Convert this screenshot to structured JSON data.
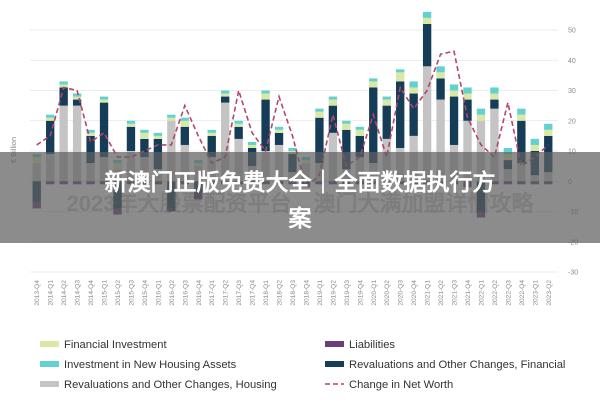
{
  "banner": {
    "line1": "新澳门正版免费大全｜全面数据执行方",
    "line2": "案"
  },
  "watermark": {
    "text": "2023年大股票配资平台…澳门大满加盟详情攻略"
  },
  "colors": {
    "financial_investment": "#d9e8a7",
    "liabilities": "#6a3c78",
    "investment_housing": "#63d1cf",
    "revaluations_financial": "#153d57",
    "revaluations_housing": "#c4c4c4",
    "net_worth": "#b5456b",
    "grid": "#dcdcdc"
  },
  "chart_data": {
    "type": "bar",
    "ylabel": "€ Billion",
    "ylim": [
      -30,
      50
    ],
    "yticks": [
      50,
      40,
      30,
      20,
      10,
      0,
      -10,
      -20,
      -30
    ],
    "grid": true,
    "legend_position": "bottom",
    "categories": [
      "2013-Q4",
      "2014-Q1",
      "2014-Q2",
      "2014-Q3",
      "2014-Q4",
      "2015-Q1",
      "2015-Q2",
      "2015-Q3",
      "2015-Q4",
      "2016-Q1",
      "2016-Q2",
      "2016-Q3",
      "2016-Q4",
      "2017-Q1",
      "2017-Q2",
      "2017-Q3",
      "2017-Q4",
      "2018-Q1",
      "2018-Q2",
      "2018-Q3",
      "2018-Q4",
      "2019-Q1",
      "2019-Q2",
      "2019-Q3",
      "2019-Q4",
      "2020-Q1",
      "2020-Q2",
      "2020-Q3",
      "2020-Q4",
      "2021-Q1",
      "2021-Q2",
      "2021-Q3",
      "2021-Q4",
      "2022-Q1",
      "2022-Q2",
      "2022-Q3",
      "2022-Q4",
      "2023-Q1",
      "2023-Q2"
    ],
    "series": [
      {
        "name": "Revaluations and Other Changes, Housing",
        "color_key": "revaluations_housing",
        "values": [
          6,
          9,
          25,
          25,
          6,
          8,
          4,
          10,
          8,
          4,
          20,
          12,
          5,
          8,
          26,
          14,
          5,
          10,
          12,
          3,
          6,
          6,
          16,
          4,
          8,
          6,
          14,
          11,
          15,
          38,
          27,
          12,
          20,
          20,
          24,
          4,
          6,
          2,
          3
        ]
      },
      {
        "name": "Revaluations and Other Changes, Financial",
        "color_key": "revaluations_financial",
        "values": [
          -7,
          11,
          6,
          2,
          9,
          18,
          -9,
          8,
          6,
          10,
          -9,
          6,
          -4,
          7,
          2,
          4,
          6,
          17,
          4,
          6,
          -1,
          15,
          9,
          13,
          7,
          25,
          11,
          22,
          14,
          14,
          7,
          16,
          7,
          -10,
          3,
          3,
          14,
          8,
          12
        ]
      },
      {
        "name": "Financial Investment",
        "color_key": "financial_investment",
        "values": [
          2,
          1,
          1,
          1,
          1,
          1,
          2,
          1,
          2,
          1,
          1,
          2,
          1,
          1,
          1,
          1,
          1,
          2,
          1,
          1,
          1,
          2,
          2,
          2,
          2,
          2,
          2,
          3,
          2,
          2,
          2,
          2,
          2,
          2,
          2,
          2,
          2,
          2,
          2
        ]
      },
      {
        "name": "Investment in New Housing Assets",
        "color_key": "investment_housing",
        "values": [
          1,
          1,
          1,
          1,
          1,
          1,
          1,
          1,
          1,
          1,
          1,
          1,
          1,
          1,
          1,
          1,
          1,
          1,
          1,
          1,
          1,
          1,
          1,
          1,
          1,
          1,
          1,
          1,
          2,
          2,
          2,
          2,
          2,
          2,
          2,
          2,
          2,
          2,
          2
        ]
      },
      {
        "name": "Liabilities",
        "color_key": "liabilities",
        "values": [
          -2,
          -1,
          -1,
          -1,
          -1,
          -1,
          -2,
          -1,
          -1,
          -1,
          -1,
          -1,
          -2,
          -1,
          -1,
          -1,
          -1,
          -1,
          -1,
          -1,
          -1,
          -1,
          -1,
          -1,
          -1,
          -1,
          -1,
          -1,
          -1,
          -1,
          -1,
          -1,
          -2,
          -2,
          -1,
          -1,
          -1,
          -1,
          -1
        ]
      }
    ],
    "net_worth": {
      "name": "Change in Net Worth",
      "color_key": "net_worth",
      "values": [
        12,
        15,
        31,
        30,
        13,
        16,
        8,
        8,
        10,
        12,
        12,
        25,
        15,
        6,
        8,
        30,
        16,
        10,
        28,
        15,
        -2,
        2,
        22,
        5,
        8,
        22,
        8,
        31,
        24,
        30,
        42,
        43,
        21,
        12,
        8,
        26,
        5,
        8,
        12
      ]
    }
  },
  "legend": {
    "items": [
      {
        "label": "Financial Investment",
        "kind": "bar",
        "color_key": "financial_investment"
      },
      {
        "label": "Liabilities",
        "kind": "bar",
        "color_key": "liabilities"
      },
      {
        "label": "Investment in New Housing Assets",
        "kind": "bar",
        "color_key": "investment_housing"
      },
      {
        "label": "Revaluations and Other Changes, Financial",
        "kind": "bar",
        "color_key": "revaluations_financial"
      },
      {
        "label": "Revaluations and Other Changes, Housing",
        "kind": "bar",
        "color_key": "revaluations_housing"
      },
      {
        "label": "Change in Net Worth",
        "kind": "dash",
        "color_key": "net_worth"
      }
    ]
  }
}
